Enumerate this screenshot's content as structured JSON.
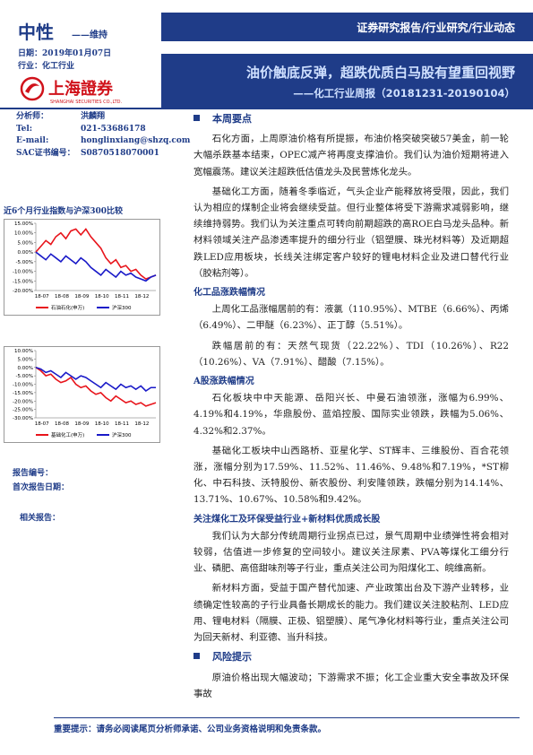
{
  "header": {
    "rating": "中性",
    "rating_change": "——维持",
    "report_type": "证券研究报告/行业研究/行业动态",
    "date": "日期：2019年01月07日",
    "industry": "行业：化工行业",
    "logo_cn": "上海證券",
    "logo_en": "SHANGHAI SECURITIES CO.,LTD.",
    "title": "油价触底反弹，超跌优质白马股有望重回视野",
    "subtitle": "——化工行业周报（20181231-20190104）"
  },
  "analyst": [
    [
      "分析师：",
      "洪麟翔"
    ],
    [
      "Tel:",
      "021-53686178"
    ],
    [
      "E-mail:",
      "honglinxiang@shzq.com"
    ],
    [
      "SAC证书编号：",
      "S0870518070001"
    ]
  ],
  "sidebar": {
    "chart_heading": "近6个月行业指数与沪深300比较",
    "report_no": "报告编号：",
    "first_date": "首次报告日期：",
    "related": "相关报告："
  },
  "charts": [
    {
      "type": "line",
      "categories": [
        "18-07",
        "18-08",
        "18-09",
        "18-10",
        "18-11",
        "18-12"
      ],
      "ylim": [
        -20,
        15
      ],
      "yticks": [
        {
          "value": 15,
          "label": "15.00%"
        },
        {
          "value": 10,
          "label": "10.00%"
        },
        {
          "value": 5,
          "label": "5.00%"
        },
        {
          "value": 0,
          "label": "0.00%"
        },
        {
          "value": -5,
          "label": "-5.00%"
        },
        {
          "value": -10,
          "label": "-10.00%"
        },
        {
          "value": -15,
          "label": "-15.00%"
        },
        {
          "value": -20,
          "label": "-20.00%"
        }
      ],
      "series": [
        {
          "name": "石油石化(申万)",
          "color": "#e8141b",
          "values": [
            0,
            3,
            6,
            4,
            8,
            10,
            7,
            11,
            12,
            9,
            12,
            8,
            5,
            2,
            -3,
            -6,
            -4,
            -8,
            -7,
            -10,
            -9,
            -12,
            -14,
            -13,
            -12
          ]
        },
        {
          "name": "沪深300",
          "color": "#1a1ac8",
          "values": [
            0,
            -2,
            -4,
            -1,
            -3,
            -5,
            -2,
            -4,
            -6,
            -3,
            -5,
            -8,
            -10,
            -12,
            -9,
            -11,
            -13,
            -10,
            -12,
            -11,
            -13,
            -14,
            -15,
            -13,
            -12
          ]
        }
      ]
    },
    {
      "type": "line",
      "categories": [
        "18-07",
        "18-08",
        "18-09",
        "18-10",
        "18-11",
        "18-12"
      ],
      "ylim": [
        -30,
        10
      ],
      "yticks": [
        {
          "value": 10,
          "label": "10.00%"
        },
        {
          "value": 5,
          "label": "5.00%"
        },
        {
          "value": 0,
          "label": "0.00%"
        },
        {
          "value": -5,
          "label": "-5.00%"
        },
        {
          "value": -10,
          "label": "-10.00%"
        },
        {
          "value": -15,
          "label": "-15.00%"
        },
        {
          "value": -20,
          "label": "-20.00%"
        },
        {
          "value": -25,
          "label": "-25.00%"
        },
        {
          "value": -30,
          "label": "-30.00%"
        }
      ],
      "series": [
        {
          "name": "基础化工(申万)",
          "color": "#e8141b",
          "values": [
            0,
            -2,
            -5,
            -4,
            -7,
            -9,
            -8,
            -6,
            -10,
            -12,
            -11,
            -14,
            -16,
            -15,
            -18,
            -20,
            -17,
            -19,
            -21,
            -20,
            -22,
            -21,
            -23,
            -22,
            -21
          ]
        },
        {
          "name": "沪深300",
          "color": "#1a1ac8",
          "values": [
            0,
            -1,
            -3,
            -2,
            -4,
            -6,
            -3,
            -5,
            -7,
            -5,
            -6,
            -8,
            -10,
            -12,
            -9,
            -11,
            -13,
            -10,
            -12,
            -11,
            -13,
            -11,
            -14,
            -12,
            -12
          ]
        }
      ]
    }
  ],
  "body": [
    {
      "section": "本周要点"
    },
    {
      "p": "石化方面，上周原油价格有所提振，布油价格突破突破57美金，前一轮大幅杀跌基本结束，OPEC减产将再度支撑油价。我们认为油价短期将进入宽幅震荡。建议关注超跌低估值龙头及民营炼化龙头。"
    },
    {
      "p": "基础化工方面，随着冬季临近，气头企业产能释放将受限，因此，我们认为相应的煤制企业将会继续受益。但行业整体将受下游需求减弱影响，继续维持弱势。我们认为关注重点可转向前期超跌的高ROE白马龙头品种。新材料领域关注产品渗透率提升的细分行业（铝塑膜、珠光材料等）及近期超跌LED应用板块，长线关注绑定客户较好的锂电材料企业及进口替代行业（胶粘剂等）。"
    },
    {
      "sub": "化工品涨跌幅情况"
    },
    {
      "p": "上周化工品涨幅居前的有：液氯（110.95%）、MTBE（6.66%）、丙烯（6.49%）、二甲醚（6.23%）、正丁醇（5.51%）。"
    },
    {
      "p": "跌幅居前的有：天然气现货（22.22%）、TDI（10.26%）、R22（10.26%）、VA（7.91%）、醋酸（7.15%）。"
    },
    {
      "sub": "A股涨跌幅情况"
    },
    {
      "p": "石化板块中中天能源、岳阳兴长、中曼石油领涨，涨幅为6.99%、4.19%和4.19%，华鼎股份、蓝焰控股、国际实业领跌，跌幅为5.06%、4.32%和2.37%。"
    },
    {
      "p": "基础化工板块中山西路桥、亚星化学、ST辉丰、三维股份、百合花领涨，涨幅分别为17.59%、11.52%、11.46%、9.48%和7.19%，*ST柳化、中石科技、沃特股份、新农股份、利安隆领跌，跌幅分别为14.14%、13.71%、10.67%、10.58%和9.42%。"
    },
    {
      "sub": "关注煤化工及环保受益行业+新材料优质成长股"
    },
    {
      "p": "我们认为大部分传统周期行业拐点已过，景气周期中业绩弹性将会相对较弱，估值进一步修复的空间较小。建议关注尿素、PVA等煤化工细分行业、磷肥、高倍甜味剂等子行业，重点关注公司为阳煤化工、皖维高新。"
    },
    {
      "p": "新材料方面，受益于国产替代加速、产业政策出台及下游产业转移，业绩确定性较高的子行业具备长期成长的能力。我们建议关注胶粘剂、LED应用、锂电材料（隔膜、正极、铝塑膜）、尾气净化材料等行业，重点关注公司为回天新材、利亚德、当升科技。"
    },
    {
      "section": "风险提示"
    },
    {
      "p": "原油价格出现大幅波动；下游需求不振；化工企业重大安全事故及环保事故"
    }
  ],
  "footer": "重要提示：请务必阅读尾页分析师承诺、公司业务资格说明和免责条款。"
}
